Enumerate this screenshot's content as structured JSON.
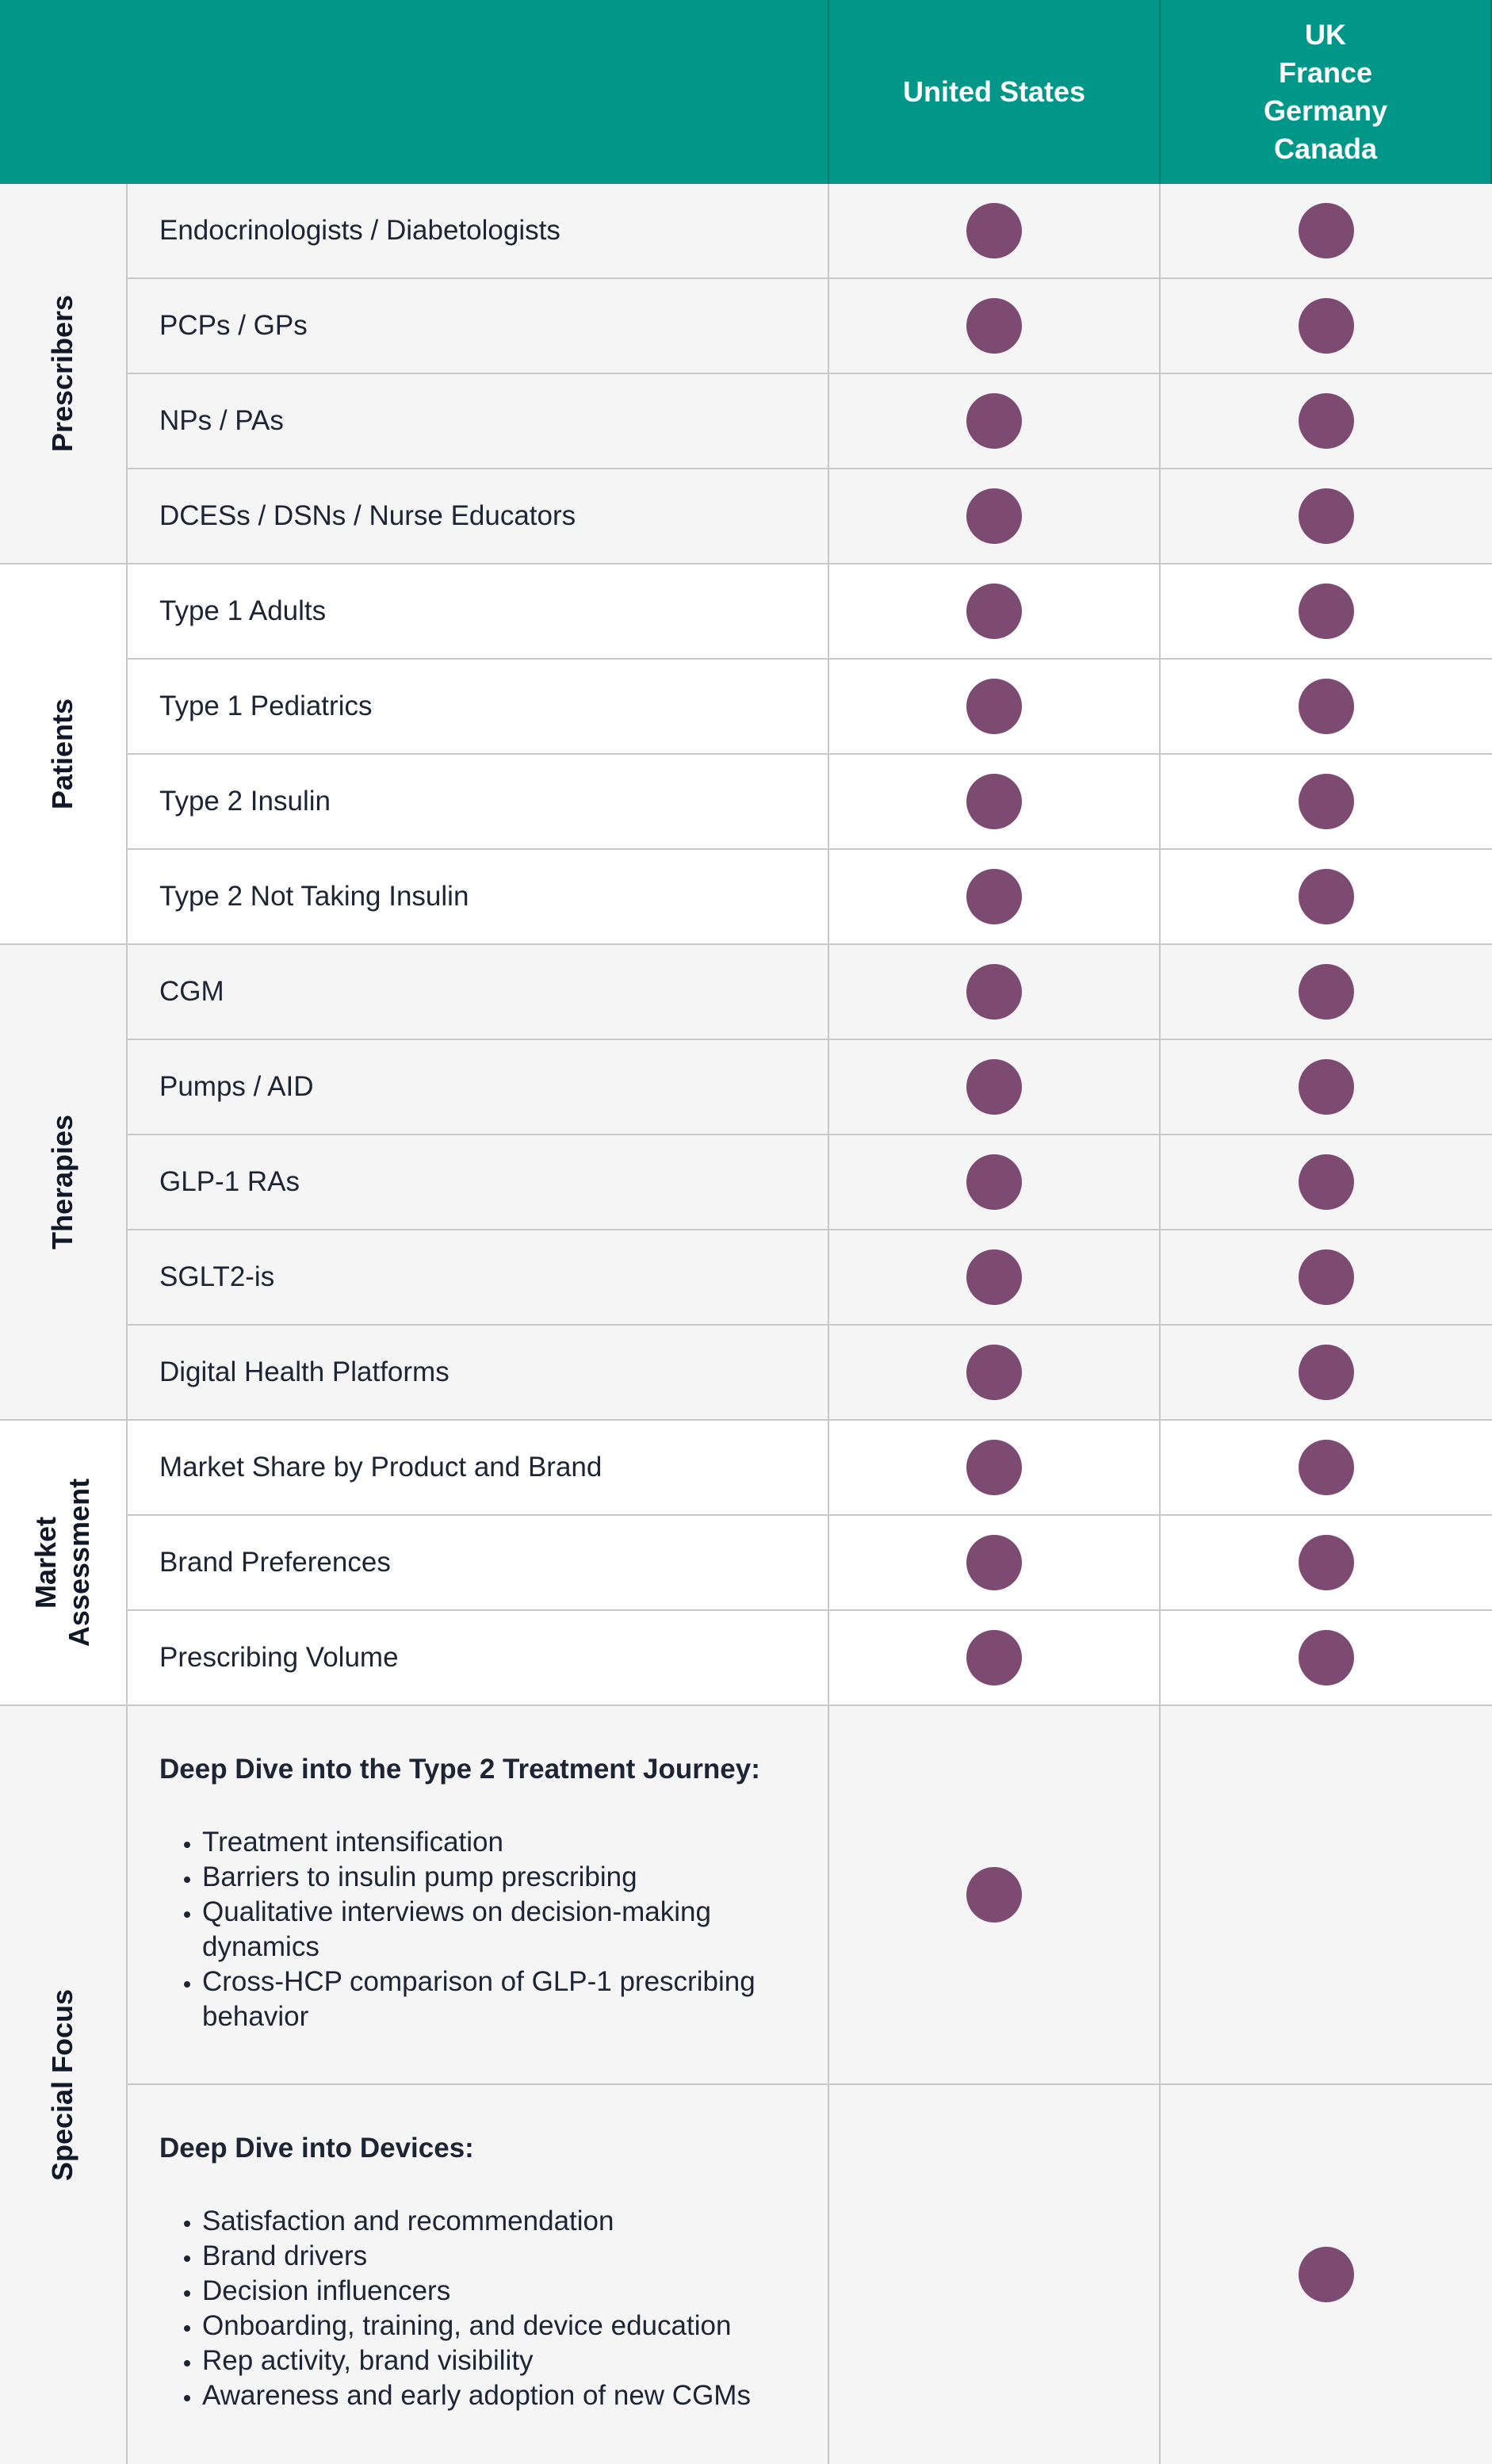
{
  "header": {
    "col_us": "United States",
    "col_intl": [
      "UK",
      "France",
      "Germany",
      "Canada"
    ]
  },
  "groups": [
    {
      "label": [
        "Prescribers"
      ]
    },
    {
      "label": [
        "Patients"
      ]
    },
    {
      "label": [
        "Therapies"
      ]
    },
    {
      "label": [
        "Market",
        "Assessment"
      ]
    },
    {
      "label": [
        "Special Focus"
      ]
    }
  ],
  "rows": [
    {
      "label": "Endocrinologists / Diabetologists",
      "us": true,
      "intl": true
    },
    {
      "label": "PCPs / GPs",
      "us": true,
      "intl": true
    },
    {
      "label": "NPs / PAs",
      "us": true,
      "intl": true
    },
    {
      "label": "DCESs / DSNs / Nurse Educators",
      "us": true,
      "intl": true
    },
    {
      "label": "Type 1 Adults",
      "us": true,
      "intl": true
    },
    {
      "label": "Type 1 Pediatrics",
      "us": true,
      "intl": true
    },
    {
      "label": "Type 2 Insulin",
      "us": true,
      "intl": true
    },
    {
      "label": "Type 2 Not Taking Insulin",
      "us": true,
      "intl": true
    },
    {
      "label": "CGM",
      "us": true,
      "intl": true
    },
    {
      "label": "Pumps / AID",
      "us": true,
      "intl": true
    },
    {
      "label": "GLP-1 RAs",
      "us": true,
      "intl": true
    },
    {
      "label": "SGLT2-is",
      "us": true,
      "intl": true
    },
    {
      "label": "Digital Health Platforms",
      "us": true,
      "intl": true
    },
    {
      "label": "Market Share by Product and Brand",
      "us": true,
      "intl": true
    },
    {
      "label": "Brand Preferences",
      "us": true,
      "intl": true
    },
    {
      "label": "Prescribing Volume",
      "us": true,
      "intl": true
    }
  ],
  "special_focus": [
    {
      "title": "Deep Dive into the Type 2 Treatment Journey:",
      "bullets": [
        "Treatment intensification",
        "Barriers to insulin pump prescribing",
        "Qualitative interviews on decision-making dynamics",
        "Cross-HCP comparison of GLP-1 prescribing behavior"
      ],
      "us": true,
      "intl": false
    },
    {
      "title": "Deep Dive into Devices:",
      "bullets": [
        "Satisfaction and recommendation",
        "Brand drivers",
        "Decision influencers",
        "Onboarding, training, and device education",
        "Rep activity, brand visibility",
        "Awareness and early adoption of new CGMs"
      ],
      "us": false,
      "intl": true
    }
  ],
  "colors": {
    "header_bg": "#009688",
    "dot": "#7d4a72",
    "gray_band": "#f5f5f5"
  }
}
